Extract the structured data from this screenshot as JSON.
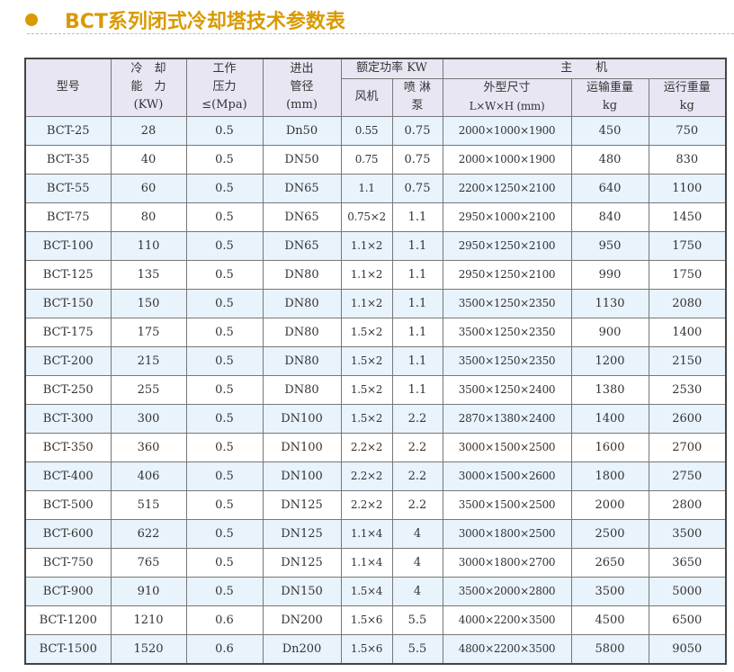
{
  "title": "BCT系列闭式冷却塔技术参数表",
  "colors": {
    "accent": "#d99a00",
    "header_bg": "#e8e6f2",
    "row_alt_bg": "#e8f3fc"
  },
  "headers": {
    "model": "型号",
    "capacity": [
      "冷　却",
      "能　力",
      "(KW)"
    ],
    "pressure": [
      "工作",
      "压力",
      "≤(Mpa)"
    ],
    "pipe": [
      "进出",
      "管径",
      "(mm)"
    ],
    "power": "额定功率 KW",
    "fan": "风机",
    "pump": [
      "喷 淋",
      "泵"
    ],
    "main": "主　　机",
    "dims": [
      "外型尺寸",
      "L×W×H (mm)"
    ],
    "ship_weight": [
      "运输重量",
      "kg"
    ],
    "run_weight": [
      "运行重量",
      "kg"
    ]
  },
  "rows": [
    [
      "BCT-25",
      "28",
      "0.5",
      "Dn50",
      "0.55",
      "0.75",
      "2000×1000×1900",
      "450",
      "750"
    ],
    [
      "BCT-35",
      "40",
      "0.5",
      "DN50",
      "0.75",
      "0.75",
      "2000×1000×1900",
      "480",
      "830"
    ],
    [
      "BCT-55",
      "60",
      "0.5",
      "DN65",
      "1.1",
      "0.75",
      "2200×1250×2100",
      "640",
      "1100"
    ],
    [
      "BCT-75",
      "80",
      "0.5",
      "DN65",
      "0.75×2",
      "1.1",
      "2950×1000×2100",
      "840",
      "1450"
    ],
    [
      "BCT-100",
      "110",
      "0.5",
      "DN65",
      "1.1×2",
      "1.1",
      "2950×1250×2100",
      "950",
      "1750"
    ],
    [
      "BCT-125",
      "135",
      "0.5",
      "DN80",
      "1.1×2",
      "1.1",
      "2950×1250×2100",
      "990",
      "1750"
    ],
    [
      "BCT-150",
      "150",
      "0.5",
      "DN80",
      "1.1×2",
      "1.1",
      "3500×1250×2350",
      "1130",
      "2080"
    ],
    [
      "BCT-175",
      "175",
      "0.5",
      "DN80",
      "1.5×2",
      "1.1",
      "3500×1250×2350",
      "900",
      "1400"
    ],
    [
      "BCT-200",
      "215",
      "0.5",
      "DN80",
      "1.5×2",
      "1.1",
      "3500×1250×2350",
      "1200",
      "2150"
    ],
    [
      "BCT-250",
      "255",
      "0.5",
      "DN80",
      "1.5×2",
      "1.1",
      "3500×1250×2400",
      "1380",
      "2530"
    ],
    [
      "BCT-300",
      "300",
      "0.5",
      "DN100",
      "1.5×2",
      "2.2",
      "2870×1380×2400",
      "1400",
      "2600"
    ],
    [
      "BCT-350",
      "360",
      "0.5",
      "DN100",
      "2.2×2",
      "2.2",
      "3000×1500×2500",
      "1600",
      "2700"
    ],
    [
      "BCT-400",
      "406",
      "0.5",
      "DN100",
      "2.2×2",
      "2.2",
      "3000×1500×2600",
      "1800",
      "2750"
    ],
    [
      "BCT-500",
      "515",
      "0.5",
      "DN125",
      "2.2×2",
      "2.2",
      "3500×1500×2500",
      "2000",
      "2800"
    ],
    [
      "BCT-600",
      "622",
      "0.5",
      "DN125",
      "1.1×4",
      "4",
      "3000×1800×2500",
      "2500",
      "3500"
    ],
    [
      "BCT-750",
      "765",
      "0.5",
      "DN125",
      "1.1×4",
      "4",
      "3000×1800×2700",
      "2650",
      "3650"
    ],
    [
      "BCT-900",
      "910",
      "0.5",
      "DN150",
      "1.5×4",
      "4",
      "3500×2000×2800",
      "3500",
      "5000"
    ],
    [
      "BCT-1200",
      "1210",
      "0.6",
      "DN200",
      "1.5×6",
      "5.5",
      "4000×2200×3500",
      "4500",
      "6500"
    ],
    [
      "BCT-1500",
      "1520",
      "0.6",
      "Dn200",
      "1.5×6",
      "5.5",
      "4800×2200×3500",
      "5800",
      "9050"
    ]
  ]
}
